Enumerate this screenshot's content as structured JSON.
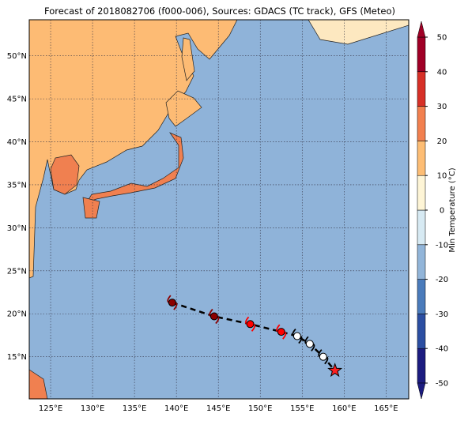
{
  "map": {
    "title": "Forecast of 2018082706 (f000-006), Sources: GDACS (TC track), GFS (Meteo)",
    "xlim": [
      122.45,
      167.7
    ],
    "ylim": [
      10.1,
      54.2
    ],
    "lon_ticks": [
      {
        "value": 125,
        "label": "125°E"
      },
      {
        "value": 130,
        "label": "130°E"
      },
      {
        "value": 135,
        "label": "135°E"
      },
      {
        "value": 140,
        "label": "140°E"
      },
      {
        "value": 145,
        "label": "145°E"
      },
      {
        "value": 150,
        "label": "150°E"
      },
      {
        "value": 155,
        "label": "155°E"
      },
      {
        "value": 160,
        "label": "160°E"
      },
      {
        "value": 165,
        "label": "165°E"
      }
    ],
    "lat_ticks": [
      {
        "value": 15,
        "label": "15°N"
      },
      {
        "value": 20,
        "label": "20°N"
      },
      {
        "value": 25,
        "label": "25°N"
      },
      {
        "value": 30,
        "label": "30°N"
      },
      {
        "value": 35,
        "label": "35°N"
      },
      {
        "value": 40,
        "label": "40°N"
      },
      {
        "value": 45,
        "label": "45°N"
      },
      {
        "value": 50,
        "label": "50°N"
      }
    ],
    "colorbar": {
      "label": "Min Temperature (°C)",
      "lim": [
        -50,
        50
      ],
      "ticks": [
        -50,
        -40,
        -30,
        -20,
        -10,
        0,
        10,
        20,
        30,
        40,
        50
      ],
      "colors": [
        "#1c1c80",
        "#2b4ea2",
        "#4a7bbb",
        "#92b5d9",
        "#d7eaf3",
        "#fef5d6",
        "#fdbd74",
        "#f2804f",
        "#d73027",
        "#a00026"
      ]
    },
    "track": {
      "lon": [
        139.5,
        144.5,
        148.8,
        152.5,
        154.4,
        155.9,
        157.5,
        158.9
      ],
      "lat": [
        21.3,
        19.7,
        18.8,
        17.9,
        17.4,
        16.5,
        15.0,
        13.4
      ],
      "colors": [
        "#8b0000",
        "#8b0000",
        "#ff0000",
        "#ff0000",
        "#ffffff",
        "#ffffff",
        "#ffffff",
        "#ff2020"
      ]
    }
  }
}
